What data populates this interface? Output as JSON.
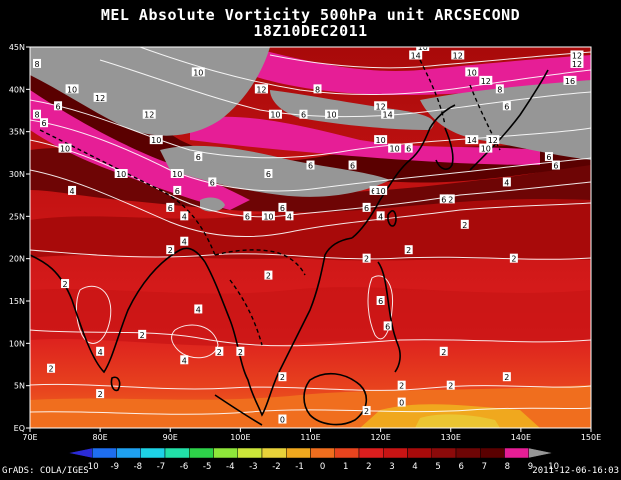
{
  "title": {
    "line1": "MEL Absolute Vorticity 500hPa unit ARCSECOND",
    "line2": "18Z10DEC2011"
  },
  "axes": {
    "lon_ticks": [
      "70E",
      "80E",
      "90E",
      "100E",
      "110E",
      "120E",
      "130E",
      "140E",
      "150E"
    ],
    "lat_ticks": [
      "EQ",
      "5N",
      "10N",
      "15N",
      "20N",
      "25N",
      "30N",
      "35N",
      "40N",
      "45N"
    ]
  },
  "colorbar": {
    "labels": [
      "-10",
      "-9",
      "-8",
      "-7",
      "-6",
      "-5",
      "-4",
      "-3",
      "-2",
      "-1",
      "0",
      "1",
      "2",
      "3",
      "4",
      "5",
      "6",
      "7",
      "8",
      "9",
      "10"
    ],
    "colors": [
      "#2b2bd6",
      "#1e6ef0",
      "#1fa0f0",
      "#1ed2e6",
      "#22e0a8",
      "#2ed24a",
      "#8ee63a",
      "#cce63a",
      "#e8d23a",
      "#f0a81e",
      "#f06e1e",
      "#e8441e",
      "#dc1e1e",
      "#c81414",
      "#a80a0a",
      "#8c0a0a",
      "#6e0505",
      "#5a0000",
      "#e61e96",
      "#969696"
    ]
  },
  "contour_labels": [
    {
      "text": "2",
      "lon": 75,
      "lat": 17
    },
    {
      "text": "2",
      "lon": 73,
      "lat": 7
    },
    {
      "text": "2",
      "lon": 86,
      "lat": 11
    },
    {
      "text": "4",
      "lon": 80,
      "lat": 9
    },
    {
      "text": "2",
      "lon": 80,
      "lat": 4
    },
    {
      "text": "2",
      "lon": 90,
      "lat": 21
    },
    {
      "text": "4",
      "lon": 94,
      "lat": 14
    },
    {
      "text": "4",
      "lon": 92,
      "lat": 8
    },
    {
      "text": "2",
      "lon": 97,
      "lat": 9
    },
    {
      "text": "2",
      "lon": 100,
      "lat": 9
    },
    {
      "text": "2",
      "lon": 104,
      "lat": 18
    },
    {
      "text": "2",
      "lon": 106,
      "lat": 6
    },
    {
      "text": "0",
      "lon": 106,
      "lat": 1
    },
    {
      "text": "2",
      "lon": 118,
      "lat": 20
    },
    {
      "text": "6",
      "lon": 120,
      "lat": 15
    },
    {
      "text": "6",
      "lon": 121,
      "lat": 12
    },
    {
      "text": "2",
      "lon": 124,
      "lat": 21
    },
    {
      "text": "2",
      "lon": 132,
      "lat": 24
    },
    {
      "text": "2",
      "lon": 139,
      "lat": 20
    },
    {
      "text": "2",
      "lon": 129,
      "lat": 9
    },
    {
      "text": "2",
      "lon": 130,
      "lat": 5
    },
    {
      "text": "2",
      "lon": 138,
      "lat": 6
    },
    {
      "text": "2",
      "lon": 118,
      "lat": 2
    },
    {
      "text": "0",
      "lon": 123,
      "lat": 3
    },
    {
      "text": "2",
      "lon": 123,
      "lat": 5
    },
    {
      "text": "4",
      "lon": 76,
      "lat": 28
    },
    {
      "text": "6",
      "lon": 90,
      "lat": 26
    },
    {
      "text": "4",
      "lon": 92,
      "lat": 25
    },
    {
      "text": "4",
      "lon": 92,
      "lat": 22
    },
    {
      "text": "6",
      "lon": 91,
      "lat": 28
    },
    {
      "text": "6",
      "lon": 94,
      "lat": 32
    },
    {
      "text": "10",
      "lon": 83,
      "lat": 30
    },
    {
      "text": "10",
      "lon": 91,
      "lat": 30
    },
    {
      "text": "6",
      "lon": 96,
      "lat": 29
    },
    {
      "text": "6",
      "lon": 101,
      "lat": 25
    },
    {
      "text": "10",
      "lon": 104,
      "lat": 25
    },
    {
      "text": "6",
      "lon": 106,
      "lat": 26
    },
    {
      "text": "4",
      "lon": 107,
      "lat": 25
    },
    {
      "text": "6",
      "lon": 104,
      "lat": 30
    },
    {
      "text": "6",
      "lon": 118,
      "lat": 26
    },
    {
      "text": "4",
      "lon": 120,
      "lat": 25
    },
    {
      "text": "6",
      "lon": 119,
      "lat": 28
    },
    {
      "text": "10",
      "lon": 120,
      "lat": 28
    },
    {
      "text": "6",
      "lon": 116,
      "lat": 31
    },
    {
      "text": "6",
      "lon": 110,
      "lat": 31
    },
    {
      "text": "6",
      "lon": 109,
      "lat": 37
    },
    {
      "text": "10",
      "lon": 120,
      "lat": 34
    },
    {
      "text": "6",
      "lon": 124,
      "lat": 33
    },
    {
      "text": "10",
      "lon": 122,
      "lat": 33
    },
    {
      "text": "6",
      "lon": 129,
      "lat": 27
    },
    {
      "text": "4",
      "lon": 138,
      "lat": 29
    },
    {
      "text": "6",
      "lon": 145,
      "lat": 31
    },
    {
      "text": "6",
      "lon": 144,
      "lat": 32
    },
    {
      "text": "14",
      "lon": 133,
      "lat": 34
    },
    {
      "text": "10",
      "lon": 135,
      "lat": 33
    },
    {
      "text": "12",
      "lon": 136,
      "lat": 34
    },
    {
      "text": "10",
      "lon": 105,
      "lat": 37
    },
    {
      "text": "12",
      "lon": 103,
      "lat": 40
    },
    {
      "text": "12",
      "lon": 103,
      "lat": 40
    },
    {
      "text": "10",
      "lon": 88,
      "lat": 34
    },
    {
      "text": "12",
      "lon": 87,
      "lat": 37
    },
    {
      "text": "10",
      "lon": 76,
      "lat": 40
    },
    {
      "text": "12",
      "lon": 80,
      "lat": 39
    },
    {
      "text": "6",
      "lon": 74,
      "lat": 38
    },
    {
      "text": "10",
      "lon": 75,
      "lat": 33
    },
    {
      "text": "6",
      "lon": 72,
      "lat": 36
    },
    {
      "text": "10",
      "lon": 94,
      "lat": 42
    },
    {
      "text": "8",
      "lon": 111,
      "lat": 40
    },
    {
      "text": "10",
      "lon": 113,
      "lat": 37
    },
    {
      "text": "12",
      "lon": 120,
      "lat": 38
    },
    {
      "text": "14",
      "lon": 125,
      "lat": 44
    },
    {
      "text": "16",
      "lon": 126,
      "lat": 45
    },
    {
      "text": "12",
      "lon": 131,
      "lat": 44
    },
    {
      "text": "10",
      "lon": 133,
      "lat": 42
    },
    {
      "text": "12",
      "lon": 135,
      "lat": 41
    },
    {
      "text": "6",
      "lon": 138,
      "lat": 38
    },
    {
      "text": "8",
      "lon": 137,
      "lat": 40
    },
    {
      "text": "12",
      "lon": 148,
      "lat": 44
    },
    {
      "text": "12",
      "lon": 148,
      "lat": 43
    },
    {
      "text": "16",
      "lon": 147,
      "lat": 41
    },
    {
      "text": "14",
      "lon": 121,
      "lat": 37
    },
    {
      "text": "2",
      "lon": 130,
      "lat": 27
    },
    {
      "text": "8",
      "lon": 71,
      "lat": 43
    },
    {
      "text": "8",
      "lon": 71,
      "lat": 37
    }
  ],
  "footer": {
    "credit": "GrADS: COLA/IGES",
    "timestamp": "2011-12-06-16:03"
  }
}
